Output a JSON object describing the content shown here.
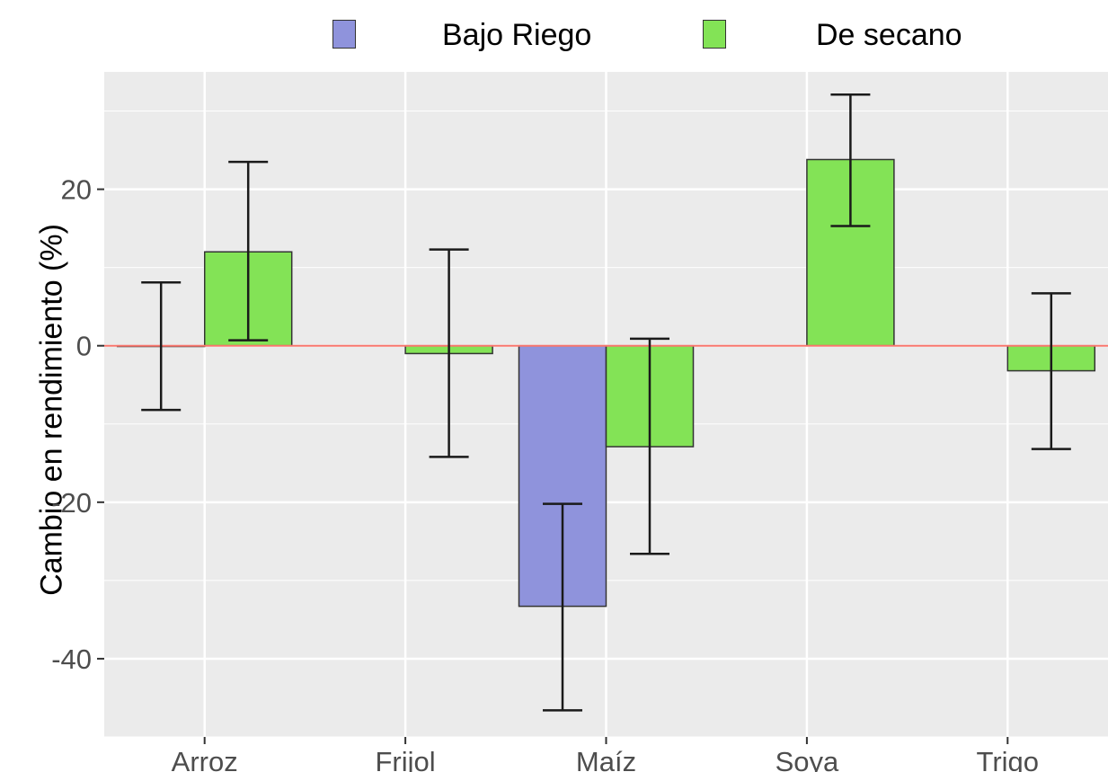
{
  "chart_data": {
    "type": "bar",
    "title": "",
    "xlabel": "",
    "ylabel": "Cambio en rendimiento (%)",
    "categories": [
      "Arroz",
      "Frijol",
      "Maíz",
      "Soya",
      "Trigo"
    ],
    "ylim": [
      -50,
      35
    ],
    "yticks": [
      20,
      0,
      -20,
      -40
    ],
    "grid": true,
    "legend_position": "top",
    "reference_line": {
      "y": 0,
      "color": "#f8766d"
    },
    "series": [
      {
        "name": "Bajo Riego",
        "color": "#8f93dc",
        "values": [
          0,
          null,
          -33.3,
          null,
          null
        ],
        "error_low": [
          -8.2,
          null,
          -46.6,
          null,
          null
        ],
        "error_high": [
          8.1,
          null,
          -20.2,
          null,
          null
        ]
      },
      {
        "name": "De secano",
        "color": "#83e356",
        "values": [
          12.0,
          -1.0,
          -12.9,
          23.8,
          -3.2
        ],
        "error_low": [
          0.7,
          -14.2,
          -26.6,
          15.3,
          -13.2
        ],
        "error_high": [
          23.5,
          12.3,
          0.9,
          32.1,
          6.7
        ]
      }
    ]
  },
  "legend": {
    "items": [
      {
        "label": "Bajo Riego",
        "color": "#8f93dc"
      },
      {
        "label": "De secano",
        "color": "#83e356"
      }
    ]
  },
  "colors": {
    "panel_background": "#ebebeb",
    "grid_line": "#ffffff",
    "bar_outline": "#333333",
    "zero_line": "#f8766d"
  }
}
